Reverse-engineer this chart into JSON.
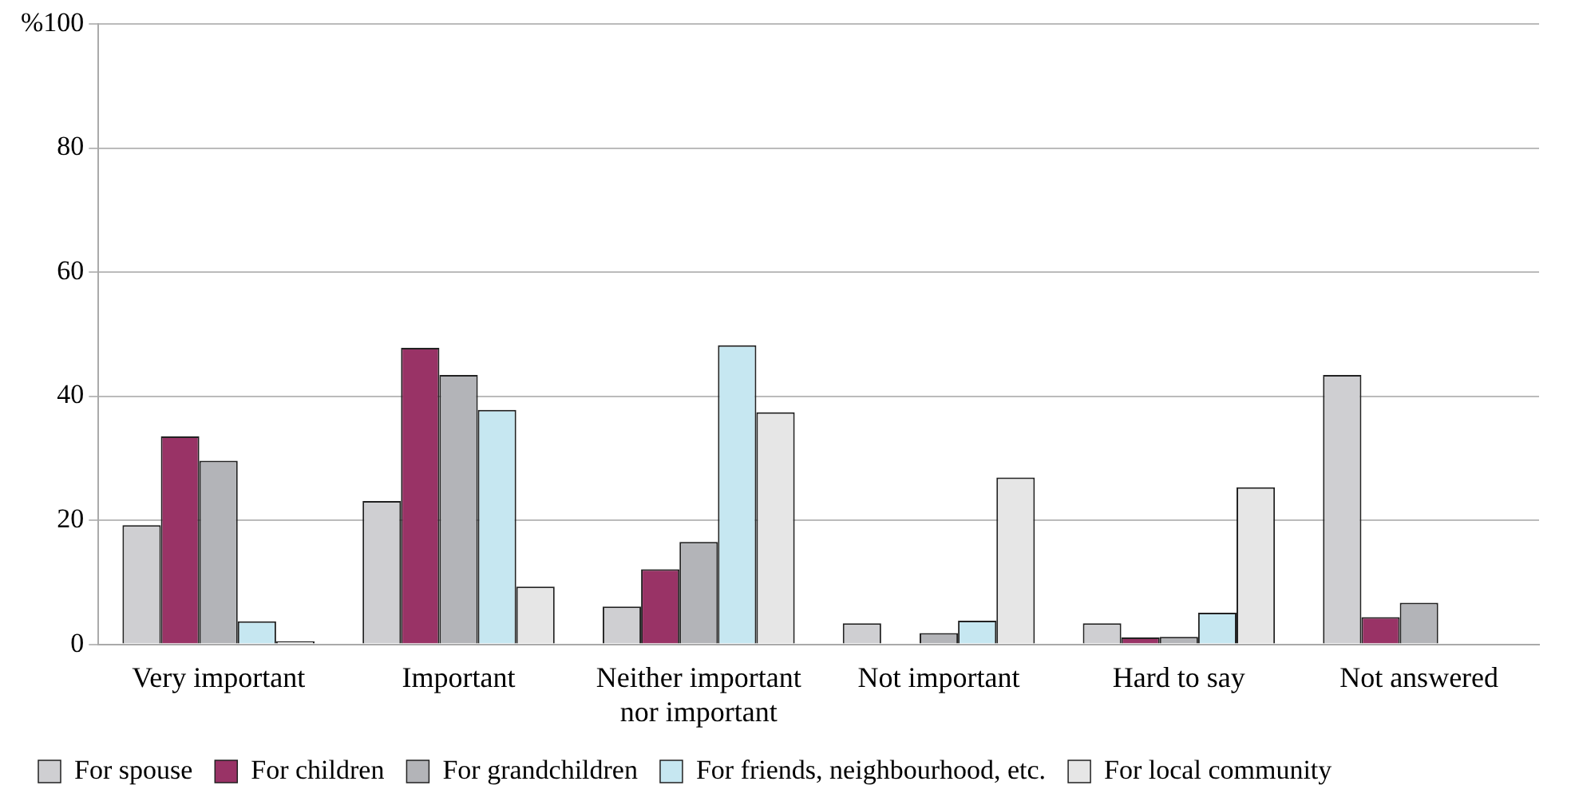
{
  "chart_data": {
    "type": "bar",
    "categories": [
      "Very important",
      "Important",
      "Neither important nor important",
      "Not important",
      "Hard to say",
      "Not answered"
    ],
    "series": [
      {
        "name": "For spouse",
        "color": "#cfcfd2",
        "values": [
          19.2,
          23.1,
          6.1,
          3.4,
          3.4,
          43.4
        ]
      },
      {
        "name": "For children",
        "color": "#993366",
        "values": [
          33.5,
          47.8,
          12.1,
          null,
          1.1,
          4.4
        ]
      },
      {
        "name": "For grandchildren",
        "color": "#b3b4b8",
        "values": [
          29.6,
          43.4,
          16.5,
          1.8,
          1.2,
          6.7
        ]
      },
      {
        "name": "For friends, neighbourhood, etc.",
        "color": "#c6e7f1",
        "values": [
          3.7,
          37.8,
          48.2,
          3.8,
          5.1,
          null
        ]
      },
      {
        "name": "For local community",
        "color": "#e6e6e6",
        "values": [
          0.5,
          9.3,
          37.4,
          26.9,
          25.3,
          null
        ]
      }
    ],
    "ylim": [
      0,
      100
    ],
    "yticks": [
      0,
      20,
      40,
      60,
      80,
      {
        "value": 100,
        "label": "%100"
      }
    ],
    "grid": "y",
    "legend": "bottom"
  }
}
